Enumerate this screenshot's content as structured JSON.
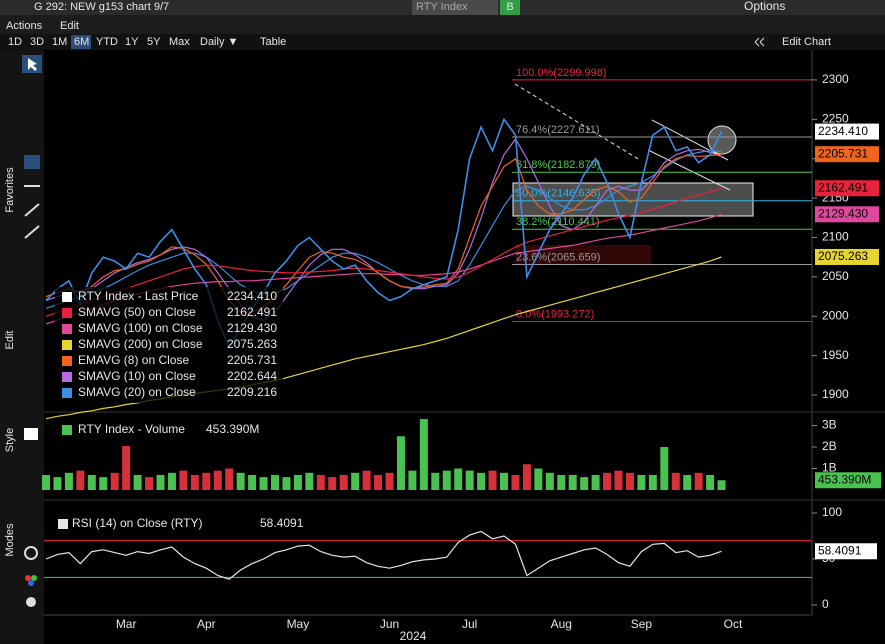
{
  "window": {
    "title": "G 292: NEW g153 chart 9/7",
    "security": "RTY Index",
    "badge": "B",
    "options": "Options"
  },
  "menu": [
    "Actions",
    "Edit"
  ],
  "toolbar": {
    "periods": [
      "1D",
      "3D",
      "1M",
      "6M",
      "YTD",
      "1Y",
      "5Y",
      "Max"
    ],
    "frequency": "Daily ▼",
    "table": "Table",
    "edit_chart": "Edit Chart"
  },
  "sidebar": [
    "Favorites",
    "Edit",
    "Style",
    "Modes"
  ],
  "year_label": "2024",
  "chart_data": [
    {
      "type": "line",
      "categories": [
        null,
        null,
        null,
        null,
        null,
        null,
        null,
        "Mar",
        null,
        null,
        null,
        null,
        null,
        null,
        "Apr",
        null,
        null,
        null,
        null,
        null,
        null,
        null,
        "May",
        null,
        null,
        null,
        null,
        null,
        null,
        null,
        "Jun",
        null,
        null,
        null,
        null,
        null,
        null,
        "Jul",
        null,
        null,
        null,
        null,
        null,
        null,
        null,
        "Aug",
        null,
        null,
        null,
        null,
        null,
        null,
        "Sep",
        null,
        null,
        null,
        null,
        null,
        null,
        null,
        "Oct"
      ],
      "ylim": [
        1881,
        2338
      ],
      "yticks": [
        1900,
        1950,
        2000,
        2050,
        2100,
        2150,
        2200,
        2250,
        2300
      ],
      "grid": false,
      "series": [
        {
          "name": "RTY Index - Last Price",
          "legend_value": "2234.410",
          "last_label": "2234.410",
          "color": "#3d8ee6",
          "tag_color": "#ffffff",
          "values": [
            2020,
            2035,
            2045,
            2015,
            2055,
            2075,
            2070,
            2060,
            2080,
            2075,
            2095,
            2110,
            2085,
            2060,
            2040,
            1995,
            1960,
            1985,
            2010,
            2030,
            2055,
            2070,
            2090,
            2100,
            2085,
            2070,
            2060,
            2065,
            2045,
            2030,
            2020,
            2025,
            2035,
            2040,
            2045,
            2050,
            2110,
            2200,
            2240,
            2210,
            2250,
            2230,
            2050,
            2080,
            2110,
            2130,
            2150,
            2180,
            2200,
            2170,
            2130,
            2100,
            2170,
            2230,
            2240,
            2210,
            2215,
            2195,
            2205,
            2234.41,
            null
          ]
        },
        {
          "name": "SMAVG (50)  on Close",
          "legend_value": "2162.491",
          "last_label": "2162.491",
          "color": "#e8223a",
          "tag_color": "#e8223a",
          "values": [
            2000,
            2005,
            2010,
            2015,
            2020,
            2025,
            2030,
            2035,
            2040,
            2045,
            2050,
            2055,
            2060,
            2063,
            2065,
            2064,
            2062,
            2060,
            2058,
            2057,
            2056,
            2055,
            2055,
            2056,
            2057,
            2058,
            2060,
            2061,
            2060,
            2058,
            2056,
            2054,
            2052,
            2050,
            2048,
            2047,
            2050,
            2056,
            2064,
            2072,
            2080,
            2088,
            2094,
            2098,
            2102,
            2106,
            2110,
            2114,
            2118,
            2122,
            2125,
            2128,
            2132,
            2136,
            2140,
            2145,
            2150,
            2154,
            2158,
            2162.491,
            null
          ]
        },
        {
          "name": "SMAVG (100)  on Close",
          "legend_value": "2129.430",
          "last_label": "2129.430",
          "color": "#e0479e",
          "tag_color": "#e0479e",
          "values": [
            1990,
            1995,
            2000,
            2005,
            2010,
            2015,
            2020,
            2024,
            2028,
            2032,
            2035,
            2038,
            2040,
            2042,
            2043,
            2044,
            2044,
            2045,
            2045,
            2046,
            2047,
            2048,
            2049,
            2050,
            2051,
            2052,
            2053,
            2054,
            2054,
            2054,
            2053,
            2053,
            2052,
            2052,
            2053,
            2054,
            2056,
            2060,
            2065,
            2070,
            2075,
            2080,
            2082,
            2084,
            2086,
            2088,
            2090,
            2093,
            2096,
            2099,
            2101,
            2103,
            2106,
            2109,
            2112,
            2115,
            2118,
            2121,
            2125,
            2129.43,
            null
          ]
        },
        {
          "name": "SMAVG (200)  on Close",
          "legend_value": "2075.263",
          "last_label": "2075.263",
          "color": "#e6d531",
          "tag_color": "#e6d531",
          "values": [
            1870,
            1873,
            1875,
            1878,
            1880,
            1883,
            1885,
            1888,
            1890,
            1893,
            1895,
            1898,
            1900,
            1902,
            1904,
            1906,
            1908,
            1910,
            1913,
            1916,
            1918,
            1922,
            1926,
            1930,
            1934,
            1938,
            1942,
            1946,
            1949,
            1952,
            1955,
            1958,
            1961,
            1964,
            1968,
            1972,
            1977,
            1982,
            1987,
            1992,
            1997,
            2002,
            2006,
            2010,
            2014,
            2018,
            2022,
            2026,
            2030,
            2034,
            2038,
            2042,
            2046,
            2050,
            2054,
            2058,
            2062,
            2066,
            2070,
            2075.263,
            null
          ]
        },
        {
          "name": "EMAVG (8)  on Close",
          "legend_value": "2205.731",
          "last_label": "2205.731",
          "color": "#f0641e",
          "tag_color": "#f0641e",
          "values": [
            2025,
            2030,
            2035,
            2030,
            2038,
            2050,
            2058,
            2060,
            2066,
            2070,
            2078,
            2088,
            2086,
            2078,
            2066,
            2045,
            2020,
            2005,
            2005,
            2012,
            2025,
            2040,
            2058,
            2075,
            2082,
            2080,
            2075,
            2072,
            2065,
            2055,
            2045,
            2038,
            2036,
            2037,
            2040,
            2042,
            2060,
            2100,
            2140,
            2165,
            2190,
            2200,
            2160,
            2140,
            2130,
            2130,
            2135,
            2148,
            2160,
            2165,
            2158,
            2145,
            2150,
            2170,
            2190,
            2200,
            2204,
            2203,
            2204,
            2205.731,
            null
          ]
        },
        {
          "name": "SMAVG (10)  on Close",
          "legend_value": "2202.644",
          "color": "#b56ce0",
          "values": [
            2020,
            2025,
            2030,
            2032,
            2035,
            2045,
            2055,
            2062,
            2068,
            2072,
            2078,
            2085,
            2088,
            2085,
            2075,
            2055,
            2035,
            2015,
            2000,
            1995,
            2005,
            2025,
            2045,
            2065,
            2078,
            2085,
            2085,
            2078,
            2068,
            2055,
            2045,
            2038,
            2035,
            2035,
            2038,
            2040,
            2055,
            2085,
            2125,
            2170,
            2205,
            2225,
            2200,
            2170,
            2140,
            2115,
            2110,
            2120,
            2140,
            2160,
            2165,
            2160,
            2160,
            2175,
            2195,
            2205,
            2210,
            2212,
            2208,
            2202.644,
            null
          ]
        },
        {
          "name": "SMAVG (20)  on Close",
          "legend_value": "2209.216",
          "color": "#3a8fe0",
          "values": [
            2010,
            2015,
            2020,
            2025,
            2030,
            2035,
            2042,
            2050,
            2058,
            2065,
            2070,
            2075,
            2080,
            2080,
            2075,
            2065,
            2052,
            2040,
            2032,
            2028,
            2030,
            2035,
            2045,
            2055,
            2065,
            2075,
            2080,
            2080,
            2075,
            2068,
            2060,
            2052,
            2045,
            2040,
            2038,
            2038,
            2045,
            2065,
            2090,
            2115,
            2140,
            2160,
            2165,
            2160,
            2150,
            2140,
            2135,
            2135,
            2140,
            2150,
            2160,
            2165,
            2170,
            2178,
            2188,
            2198,
            2205,
            2208,
            2210,
            2209.216,
            null
          ]
        }
      ],
      "fibonacci": [
        {
          "label": "100.0%(2299.998)",
          "value": 2299.998,
          "color": "#e8223a"
        },
        {
          "label": "76.4%(2227.611)",
          "value": 2227.611,
          "color": "#9a9a9a"
        },
        {
          "label": "61.8%(2182.879)",
          "value": 2182.879,
          "color": "#4cc94c"
        },
        {
          "label": "50.0%(2146.635)",
          "value": 2146.635,
          "color": "#2fb5e6"
        },
        {
          "label": "38.2%(2110.441)",
          "value": 2110.441,
          "color": "#4cc94c"
        },
        {
          "label": "23.6%(2065.659)",
          "value": 2065.659,
          "color": "#9a9a9a"
        },
        {
          "label": "0.0%(1993.272)",
          "value": 1993.272,
          "color": "#e8223a"
        }
      ]
    },
    {
      "type": "bar",
      "legend": "RTY Index - Volume",
      "legend_value": "453.390M",
      "up_color": "#49c24f",
      "down_color": "#d8303b",
      "ylim": [
        0,
        3.35
      ],
      "yticks": [
        {
          "value": 1,
          "label": "1B"
        },
        {
          "value": 2,
          "label": "2B"
        },
        {
          "value": 3,
          "label": "3B"
        }
      ],
      "values": [
        0.7,
        0.6,
        0.8,
        0.9,
        0.7,
        0.6,
        0.8,
        2.05,
        0.7,
        0.6,
        0.7,
        0.8,
        0.9,
        0.7,
        0.8,
        0.9,
        1.0,
        0.8,
        0.7,
        0.6,
        0.7,
        0.6,
        0.7,
        0.8,
        0.7,
        0.6,
        0.7,
        0.8,
        0.9,
        0.7,
        0.8,
        2.5,
        0.9,
        3.3,
        0.8,
        0.9,
        1.0,
        0.9,
        0.8,
        0.9,
        0.8,
        0.7,
        1.2,
        1.0,
        0.8,
        0.7,
        0.7,
        0.6,
        0.7,
        0.8,
        0.9,
        0.8,
        0.7,
        0.7,
        2.0,
        0.8,
        0.7,
        0.8,
        0.7,
        0.45339,
        null
      ],
      "value_labels": [
        null,
        null,
        null,
        null,
        null,
        null,
        null,
        null,
        null,
        null,
        null,
        null,
        null,
        null,
        null,
        null,
        null,
        null,
        null,
        null,
        null,
        null,
        null,
        null,
        null,
        null,
        null,
        null,
        null,
        null,
        null,
        null,
        null,
        null,
        null,
        null,
        null,
        null,
        null,
        null,
        null,
        null,
        null,
        null,
        null,
        null,
        null,
        null,
        null,
        null,
        null,
        null,
        null,
        null,
        null,
        null,
        null,
        null,
        null,
        "453.390M",
        null
      ]
    },
    {
      "type": "line",
      "legend": "RSI (14)  on Close (RTY)",
      "legend_value": "58.4091",
      "color": "#e6e6e6",
      "overbought": 70,
      "oversold": 30,
      "ylim": [
        -10.9,
        108.7
      ],
      "yticks": [
        0,
        50,
        100
      ],
      "values": [
        50,
        55,
        57,
        45,
        58,
        60,
        57,
        54,
        58,
        56,
        60,
        63,
        52,
        45,
        40,
        32,
        28,
        38,
        45,
        50,
        57,
        60,
        64,
        65,
        58,
        54,
        52,
        53,
        46,
        42,
        40,
        43,
        47,
        49,
        50,
        52,
        68,
        76,
        80,
        72,
        75,
        66,
        32,
        40,
        48,
        52,
        56,
        60,
        62,
        55,
        46,
        42,
        58,
        66,
        67,
        57,
        59,
        52,
        54,
        58.4091,
        null
      ],
      "value_labels": [
        null,
        null,
        null,
        null,
        null,
        null,
        null,
        null,
        null,
        null,
        null,
        null,
        null,
        null,
        null,
        null,
        null,
        null,
        null,
        null,
        null,
        null,
        null,
        null,
        null,
        null,
        null,
        null,
        null,
        null,
        null,
        null,
        null,
        null,
        null,
        null,
        null,
        null,
        null,
        null,
        null,
        null,
        null,
        null,
        null,
        null,
        null,
        null,
        null,
        null,
        null,
        null,
        null,
        null,
        null,
        null,
        null,
        null,
        null,
        "58.4091",
        null
      ]
    }
  ]
}
